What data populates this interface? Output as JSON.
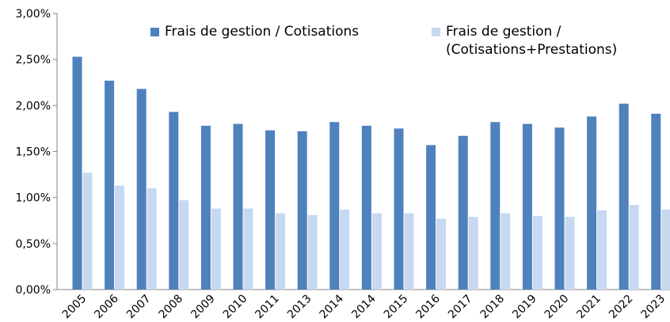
{
  "chart_data": {
    "type": "bar",
    "categories": [
      "2005",
      "2006",
      "2007",
      "2008",
      "2009",
      "2010",
      "2011",
      "2013",
      "2014",
      "2014",
      "2015",
      "2016",
      "2017",
      "2018",
      "2019",
      "2020",
      "2021",
      "2022",
      "2023"
    ],
    "series": [
      {
        "name": "Frais de gestion / Cotisations",
        "color": "#4f81bd",
        "values": [
          2.53,
          2.27,
          2.18,
          1.93,
          1.78,
          1.8,
          1.73,
          1.72,
          1.82,
          1.78,
          1.75,
          1.57,
          1.67,
          1.82,
          1.8,
          1.76,
          1.88,
          2.02,
          1.91
        ]
      },
      {
        "name": "Frais de gestion /\n(Cotisations+Prestations)",
        "color": "#c6d9f1",
        "values": [
          1.27,
          1.13,
          1.1,
          0.97,
          0.88,
          0.88,
          0.83,
          0.81,
          0.87,
          0.83,
          0.83,
          0.77,
          0.79,
          0.83,
          0.8,
          0.79,
          0.86,
          0.92,
          0.87
        ]
      }
    ],
    "ylim": [
      0,
      3
    ],
    "yticks": [
      {
        "value": 0,
        "label": "0,00%"
      },
      {
        "value": 0.5,
        "label": "0,50%"
      },
      {
        "value": 1,
        "label": "1,00%"
      },
      {
        "value": 1.5,
        "label": "1,50%"
      },
      {
        "value": 2,
        "label": "2,00%"
      },
      {
        "value": 2.5,
        "label": "2,50%"
      },
      {
        "value": 3,
        "label": "3,00%"
      }
    ],
    "grid": false,
    "legend": "top"
  }
}
